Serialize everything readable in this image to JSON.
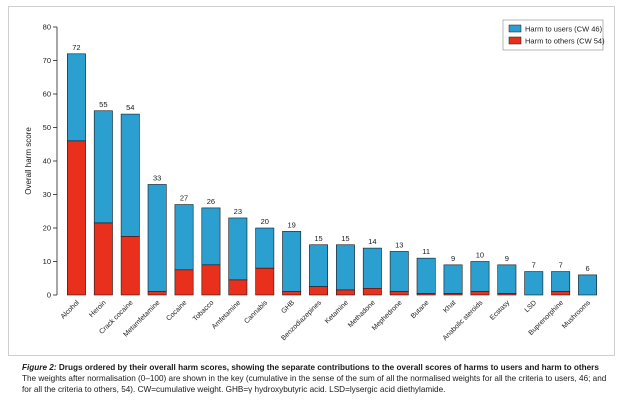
{
  "chart_data": {
    "type": "bar",
    "stacked": true,
    "ylabel": "Overall harm score",
    "xlabel": "",
    "ylim": [
      0,
      80
    ],
    "yticks": [
      0,
      10,
      20,
      30,
      40,
      50,
      60,
      70,
      80
    ],
    "grid": false,
    "legend_position": "top-right",
    "categories": [
      "Alcohol",
      "Heroin",
      "Crack cocaine",
      "Metamfetamine",
      "Cocaine",
      "Tobacco",
      "Amfetamine",
      "Cannabis",
      "GHB",
      "Benzodiazepines",
      "Ketamine",
      "Methadone",
      "Mephedrone",
      "Butane",
      "Khat",
      "Anabolic steroids",
      "Ecstasy",
      "LSD",
      "Buprenorphine",
      "Mushrooms"
    ],
    "totals": [
      72,
      55,
      54,
      33,
      27,
      26,
      23,
      20,
      19,
      15,
      15,
      14,
      13,
      11,
      9,
      10,
      9,
      7,
      7,
      6
    ],
    "series": [
      {
        "name": "Harm to others (CW 54)",
        "color": "#e8301c",
        "values": [
          46,
          21.5,
          17.5,
          1,
          7.5,
          9,
          4.5,
          8,
          1,
          2.5,
          1.5,
          2,
          1,
          0.5,
          0.5,
          1,
          0.5,
          0,
          1,
          0
        ]
      },
      {
        "name": "Harm to users (CW 46)",
        "color": "#2a9fd0",
        "values": [
          26,
          33.5,
          36.5,
          32,
          19.5,
          17,
          18.5,
          12,
          18,
          12.5,
          13.5,
          12,
          12,
          10.5,
          8.5,
          9,
          8.5,
          7,
          6,
          6
        ]
      }
    ]
  },
  "caption": {
    "figure_label": "Figure 2:",
    "title": "Drugs ordered by their overall harm scores, showing the separate contributions to the overall scores of harms to users and harm to others",
    "body": "The weights after normalisation (0–100) are shown in the key (cumulative in the sense of the sum of all the normalised weights for all the criteria to users, 46; and for all the criteria to others, 54). CW=cumulative weight. GHB=γ hydroxybutyric acid. LSD=lysergic acid diethylamide."
  }
}
